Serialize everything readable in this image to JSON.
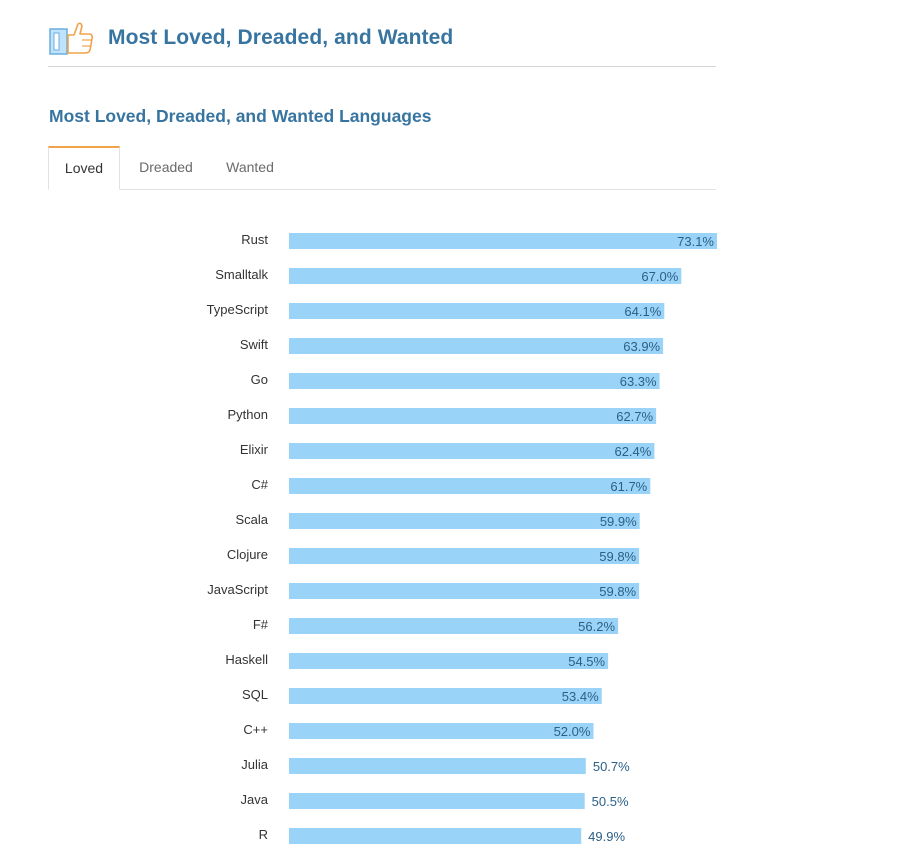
{
  "header": {
    "title": "Most Loved, Dreaded, and Wanted",
    "icon": "thumbs-up-icon"
  },
  "section": {
    "title": "Most Loved, Dreaded, and Wanted Languages"
  },
  "tabs": [
    {
      "label": "Loved",
      "active": true
    },
    {
      "label": "Dreaded",
      "active": false
    },
    {
      "label": "Wanted",
      "active": false
    }
  ],
  "colors": {
    "accent": "#3775a0",
    "bar": "#99d3f8",
    "tab_active": "#f1a34a",
    "value_text": "#2b5f86"
  },
  "chart_data": {
    "type": "bar",
    "orientation": "horizontal",
    "title": "Most Loved, Dreaded, and Wanted Languages",
    "series_name": "Loved",
    "xlim": [
      0,
      73.1
    ],
    "categories": [
      "Rust",
      "Smalltalk",
      "TypeScript",
      "Swift",
      "Go",
      "Python",
      "Elixir",
      "C#",
      "Scala",
      "Clojure",
      "JavaScript",
      "F#",
      "Haskell",
      "SQL",
      "C++",
      "Julia",
      "Java",
      "R"
    ],
    "values": [
      73.1,
      67.0,
      64.1,
      63.9,
      63.3,
      62.7,
      62.4,
      61.7,
      59.9,
      59.8,
      59.8,
      56.2,
      54.5,
      53.4,
      52.0,
      50.7,
      50.5,
      49.9
    ],
    "labels": [
      "73.1%",
      "67.0%",
      "64.1%",
      "63.9%",
      "63.3%",
      "62.7%",
      "62.4%",
      "61.7%",
      "59.9%",
      "59.8%",
      "59.8%",
      "56.2%",
      "54.5%",
      "53.4%",
      "52.0%",
      "50.7%",
      "50.5%",
      "49.9%"
    ]
  }
}
